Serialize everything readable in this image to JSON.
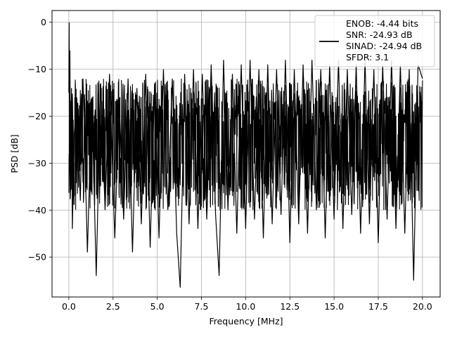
{
  "chart_data": {
    "type": "line",
    "title": "",
    "xlabel": "Frequency [MHz]",
    "ylabel": "PSD [dB]",
    "xlim": [
      -0.95,
      21.0
    ],
    "ylim": [
      -58.5,
      2.5
    ],
    "xticks": [
      0.0,
      2.5,
      5.0,
      7.5,
      10.0,
      12.5,
      15.0,
      17.5,
      20.0
    ],
    "xtick_labels": [
      "0.0",
      "2.5",
      "5.0",
      "7.5",
      "10.0",
      "12.5",
      "15.0",
      "17.5",
      "20.0"
    ],
    "yticks": [
      0,
      -10,
      -20,
      -30,
      -40,
      -50
    ],
    "ytick_labels": [
      "0",
      "−10",
      "−20",
      "−30",
      "−40",
      "−50"
    ],
    "grid": true,
    "legend_position": "top-right",
    "legend": [
      "ENOB: -4.44 bits",
      "SNR: -24.93 dB",
      "SINAD: -24.94 dB",
      "SFDR: 3.1"
    ],
    "line_color": "#000000",
    "noise_band": {
      "x_range": [
        0.0,
        20.0
      ],
      "upper_envelope_db": -12,
      "lower_envelope_db": -40,
      "median_db": -22
    },
    "series": [
      {
        "x": [
          0.0,
          0.01,
          0.02,
          0.04,
          0.06,
          0.1,
          0.15,
          0.2,
          0.3,
          0.45,
          0.65,
          0.8,
          1.05,
          1.3,
          1.55,
          1.8,
          2.05,
          2.3,
          2.6,
          2.85,
          3.1,
          3.35,
          3.6,
          3.85,
          4.1,
          4.35,
          4.6,
          4.85,
          5.1,
          5.35,
          5.6,
          5.85,
          6.1,
          6.3,
          6.55,
          6.8,
          7.05,
          7.3,
          7.55,
          7.8,
          8.05,
          8.3,
          8.5,
          8.75,
          9.0,
          9.25,
          9.5,
          9.75,
          10.0,
          10.25,
          10.5,
          10.75,
          11.0,
          11.25,
          11.5,
          11.75,
          12.0,
          12.25,
          12.5,
          12.75,
          13.0,
          13.25,
          13.5,
          13.75,
          14.0,
          14.25,
          14.5,
          14.75,
          15.0,
          15.25,
          15.5,
          15.75,
          16.0,
          16.25,
          16.5,
          16.75,
          17.0,
          17.25,
          17.5,
          17.75,
          18.0,
          18.25,
          18.5,
          18.75,
          19.0,
          19.25,
          19.5,
          19.75,
          20.0
        ],
        "y": [
          -15,
          -4.5,
          0.0,
          -28,
          -6,
          -36,
          -14,
          -44,
          -24,
          -16,
          -38,
          -12,
          -49,
          -16,
          -54,
          -13,
          -40,
          -11,
          -46,
          -17,
          -42,
          -12,
          -49,
          -14,
          -43,
          -11,
          -48,
          -13,
          -46,
          -10,
          -40,
          -12,
          -45,
          -56.5,
          -11,
          -43,
          -10,
          -44,
          -11,
          -42,
          -9,
          -41,
          -54,
          -8,
          -40,
          -11,
          -45,
          -9,
          -44,
          -8,
          -42,
          -10,
          -46,
          -9,
          -43,
          -10,
          -41,
          -8,
          -47,
          -10,
          -43,
          -9,
          -45,
          -8,
          -40,
          -10,
          -46,
          -9,
          -42,
          -8,
          -44,
          -10,
          -41,
          -9,
          -45,
          -8,
          -43,
          -10,
          -47,
          -9,
          -42,
          -8,
          -44,
          -9,
          -45,
          -10,
          -55,
          -9,
          -12
        ]
      }
    ]
  }
}
